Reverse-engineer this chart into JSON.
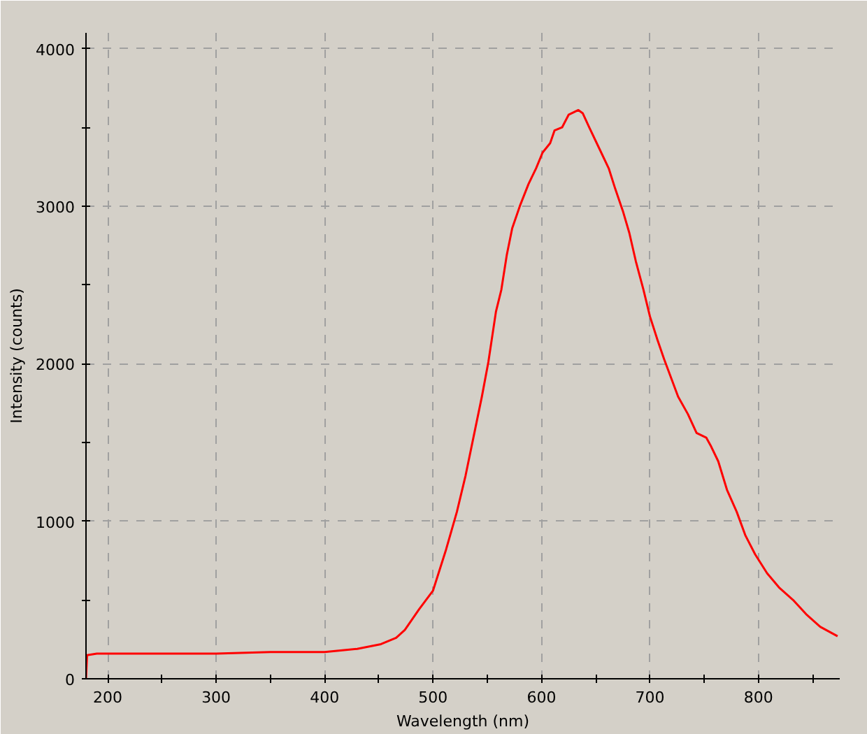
{
  "chart_data": {
    "type": "line",
    "xlabel": "Wavelength (nm)",
    "ylabel": "Intensity (counts)",
    "x": [
      180,
      181,
      190,
      200,
      250,
      300,
      350,
      400,
      430,
      452,
      466,
      474,
      487,
      500,
      512,
      522,
      530,
      539,
      545,
      551,
      558,
      563,
      568,
      573,
      580,
      588,
      595,
      601,
      608,
      612,
      619,
      625,
      634,
      638,
      644,
      653,
      662,
      668,
      675,
      681,
      687,
      694,
      700,
      707,
      713,
      726,
      735,
      743,
      752,
      756,
      763,
      771,
      780,
      788,
      797,
      808,
      819,
      832,
      844,
      857,
      873
    ],
    "series": [
      {
        "color": "#ff0000",
        "values": [
          0,
          150,
          160,
          160,
          160,
          160,
          170,
          170,
          190,
          220,
          260,
          310,
          440,
          560,
          820,
          1060,
          1290,
          1590,
          1790,
          2010,
          2330,
          2470,
          2690,
          2860,
          3000,
          3140,
          3240,
          3340,
          3400,
          3480,
          3500,
          3580,
          3610,
          3590,
          3500,
          3370,
          3240,
          3110,
          2970,
          2830,
          2650,
          2470,
          2300,
          2150,
          2030,
          1790,
          1680,
          1560,
          1530,
          1480,
          1380,
          1200,
          1060,
          910,
          790,
          670,
          580,
          500,
          410,
          330,
          270
        ]
      }
    ],
    "xlim": [
      180,
      875
    ],
    "ylim": [
      0,
      4100
    ],
    "xticks": [
      200,
      {
        "value": 250,
        "label": null
      },
      300,
      {
        "value": 350,
        "label": null
      },
      400,
      {
        "value": 450,
        "label": null
      },
      500,
      {
        "value": 550,
        "label": null
      },
      600,
      {
        "value": 650,
        "label": null
      },
      700,
      {
        "value": 750,
        "label": null
      },
      800,
      {
        "value": 850,
        "label": null
      }
    ],
    "yticks": [
      0,
      {
        "value": 500,
        "label": null
      },
      1000,
      {
        "value": 1500,
        "label": null
      },
      2000,
      {
        "value": 2500,
        "label": null
      },
      3000,
      {
        "value": 3500,
        "label": null
      },
      4000
    ],
    "grid": true,
    "line_style": "solid"
  }
}
